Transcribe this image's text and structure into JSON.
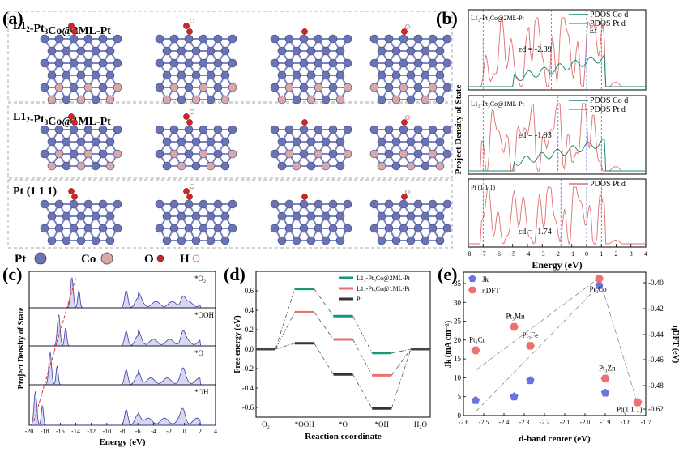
{
  "figure": {
    "panel_a": {
      "label": "(a)",
      "rows": [
        {
          "title_main": "L1",
          "title_sub": "2",
          "title_rest": "-Pt",
          "title_sub2": "3",
          "title_end": "Co@2ML-Pt"
        },
        {
          "title_main": "L1",
          "title_sub": "2",
          "title_rest": "-Pt",
          "title_sub2": "3",
          "title_end": "Co@1ML-Pt"
        },
        {
          "title_main": "Pt (1 1 1)",
          "title_sub": "",
          "title_rest": "",
          "title_sub2": "",
          "title_end": ""
        }
      ],
      "atom_legend": [
        {
          "name": "Pt",
          "color": "#6b74b3"
        },
        {
          "name": "Co",
          "color": "#d9a9a9"
        },
        {
          "name": "O",
          "color": "#d22525"
        },
        {
          "name": "H",
          "color": "#ffffff"
        }
      ]
    },
    "panel_b": {
      "label": "(b)"
    },
    "panel_c": {
      "label": "(c)"
    },
    "panel_d": {
      "label": "(d)"
    },
    "panel_e": {
      "label": "(e)"
    }
  },
  "chart_data": [
    {
      "id": "b",
      "type": "line",
      "ylabel": "Project Density of State",
      "xlabel": "Energy (eV)",
      "xlim": [
        -8,
        4
      ],
      "xticks": [
        -8,
        -7,
        -6,
        -5,
        -4,
        -3,
        -2,
        -1,
        0,
        1,
        2,
        3,
        4
      ],
      "ef_label": "Ef",
      "subplots": [
        {
          "title": "L1₂-Pt₃Co@2ML-Pt",
          "legend": [
            "PDOS Co d",
            "PDOS Pt d"
          ],
          "ed_label": "εd = -2.39",
          "ed": -2.39
        },
        {
          "title": "L1₂-Pt₃Co@1ML-Pt",
          "legend": [
            "PDOS Co d",
            "PDOS Pt d"
          ],
          "ed_label": "εd = -1.93",
          "ed": -1.93
        },
        {
          "title": "Pt (1 1 1)",
          "legend": [
            "PDOS Pt d"
          ],
          "ed_label": "εd = -1.74",
          "ed": -1.74
        }
      ],
      "colors": {
        "co": "#1a8a6e",
        "pt": "#e07070"
      }
    },
    {
      "id": "c",
      "type": "area",
      "ylabel": "Project Density of State",
      "xlabel": "Energy (eV)",
      "xlim": [
        -20,
        4
      ],
      "xticks": [
        -20,
        -18,
        -16,
        -14,
        -12,
        -10,
        -8,
        -6,
        -4,
        -2,
        0,
        2,
        4
      ],
      "species": [
        "*O₂",
        "*OOH",
        "*O",
        "*OH"
      ],
      "color": "#8a8fd0"
    },
    {
      "id": "d",
      "type": "line",
      "ylabel": "Free energy (eV)",
      "xlabel": "Reaction coordinate",
      "categories": [
        "O₂",
        "*OOH",
        "*O",
        "*OH",
        "H₂O"
      ],
      "ylim": [
        -0.7,
        0.8
      ],
      "yticks": [
        -0.6,
        -0.4,
        -0.2,
        0.0,
        0.2,
        0.4,
        0.6
      ],
      "series": [
        {
          "name": "L1₂-Pt₃Co@2ML-Pt",
          "values": [
            0,
            0.62,
            0.34,
            -0.04,
            0
          ],
          "color": "#16977f"
        },
        {
          "name": "L1₂-Pt₃Co@1ML-Pt",
          "values": [
            0,
            0.38,
            0.1,
            -0.27,
            0
          ],
          "color": "#ee6f6f"
        },
        {
          "name": "Pt",
          "values": [
            0,
            0.06,
            -0.26,
            -0.61,
            0
          ],
          "color": "#333333"
        }
      ]
    },
    {
      "id": "e",
      "type": "scatter",
      "xlabel": "d-band center (eV)",
      "ylabel": "Jk (mA cm⁻²)",
      "y2label": "ηDFT (eV)",
      "xlim": [
        -2.6,
        -1.7
      ],
      "ylim": [
        0,
        38
      ],
      "y2lim": [
        -0.625,
        -0.395
      ],
      "xticks": [
        -2.6,
        -2.5,
        -2.4,
        -2.3,
        -2.2,
        -2.1,
        -2.0,
        -1.9,
        -1.8,
        -1.7
      ],
      "yticks": [
        0,
        5,
        10,
        15,
        20,
        25,
        30,
        35
      ],
      "y2ticks": [
        -0.4,
        -0.42,
        -0.44,
        -0.46,
        -0.48,
        -0.62
      ],
      "legend": [
        "Jk",
        "ηDFT"
      ],
      "jk_points": [
        {
          "x": -2.54,
          "y": 4.0
        },
        {
          "x": -2.35,
          "y": 5.0
        },
        {
          "x": -2.27,
          "y": 9.3
        },
        {
          "x": -1.93,
          "y": 34.5
        },
        {
          "x": -1.9,
          "y": 6.0
        },
        {
          "x": -1.74,
          "y": 3.5
        }
      ],
      "eta_points": [
        {
          "x": -2.54,
          "y": 17.3,
          "label": "Pt₃Cr"
        },
        {
          "x": -2.35,
          "y": 23.5,
          "label": "Pt₃Mn"
        },
        {
          "x": -2.27,
          "y": 18.5,
          "label": "Pt₃Fe"
        },
        {
          "x": -1.93,
          "y": 36.3,
          "label": "Pt₃Co"
        },
        {
          "x": -1.9,
          "y": 9.8,
          "label": "Pt₃Zn"
        },
        {
          "x": -1.74,
          "y": 3.5,
          "label": "Pt(1 1 1)"
        }
      ],
      "colors": {
        "jk": "#6a74e0",
        "eta": "#ef7070"
      }
    }
  ]
}
